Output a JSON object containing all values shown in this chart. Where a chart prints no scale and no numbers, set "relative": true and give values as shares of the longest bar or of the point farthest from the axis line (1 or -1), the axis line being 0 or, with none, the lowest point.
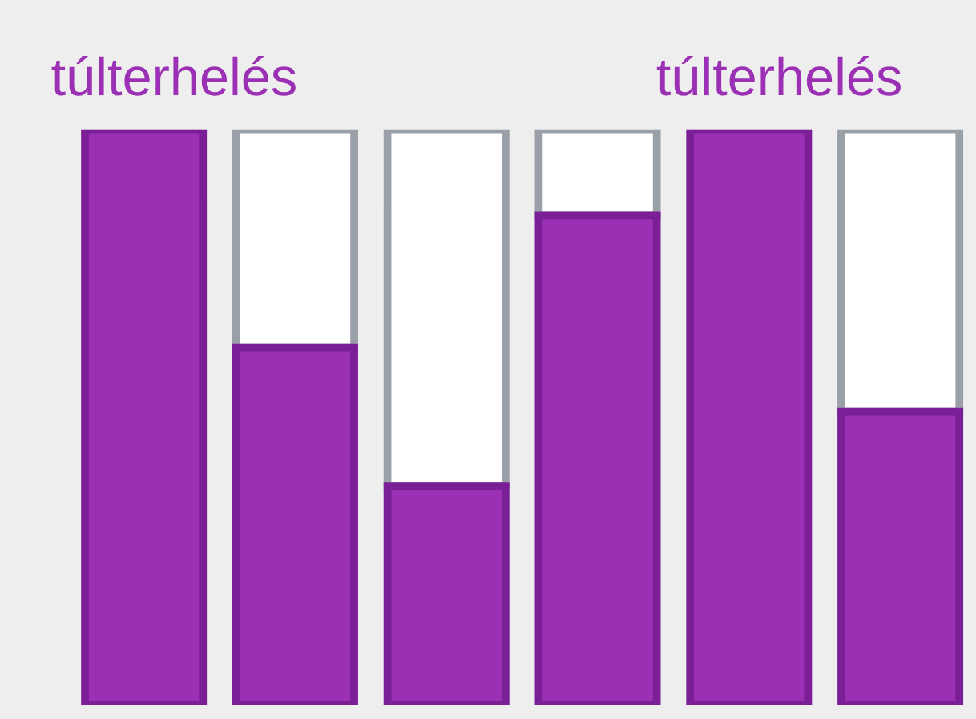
{
  "chart_data": {
    "type": "bar",
    "relative": true,
    "stacked": true,
    "categories": [
      null,
      null,
      null,
      null,
      null,
      null
    ],
    "series": [
      {
        "color": "#9b30b5",
        "values": [
          1,
          0.62,
          0.38,
          0.85,
          1,
          0.51
        ]
      },
      {
        "color": "#ffffff",
        "values": [
          0,
          0.38,
          0.62,
          0.15,
          0,
          0.49
        ]
      }
    ],
    "annotations": [
      "túlterhelés",
      "túlterhelés"
    ],
    "legend": false
  }
}
